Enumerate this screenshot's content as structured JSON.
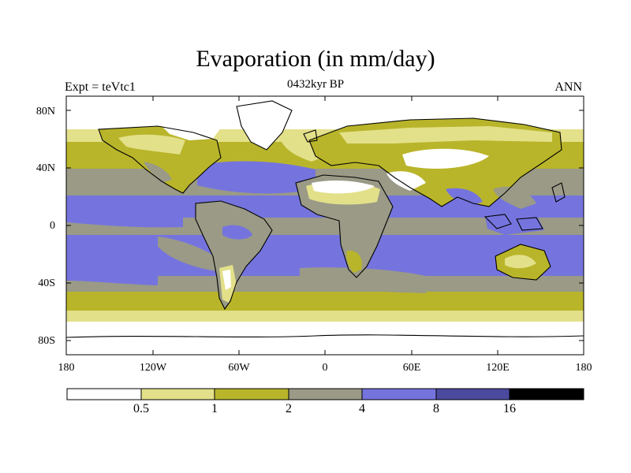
{
  "title": "Evaporation (in mm/day)",
  "subtitle": "0432kyr BP",
  "left_label": "Expt = teVtc1",
  "right_label": "ANN",
  "map": {
    "projection": "cylindrical equidistant",
    "lon_range": [
      -180,
      180
    ],
    "lat_range": [
      -90,
      90
    ],
    "y_ticks": [
      "80N",
      "40N",
      "0",
      "40S",
      "80S"
    ],
    "x_ticks": [
      "180",
      "120W",
      "60W",
      "0",
      "60E",
      "120E",
      "180"
    ]
  },
  "colorbar": {
    "levels": [
      "0.5",
      "1",
      "2",
      "4",
      "8",
      "16"
    ],
    "colors": [
      "#ffffff",
      "#e3e08a",
      "#b9b52a",
      "#9a9a87",
      "#7574de",
      "#4b4a9e",
      "#000000"
    ]
  },
  "palette": {
    "white": "#ffffff",
    "pale": "#e3e08a",
    "olive": "#b9b52a",
    "gray": "#9a9a87",
    "blue": "#7574de",
    "coast": "#000000"
  }
}
